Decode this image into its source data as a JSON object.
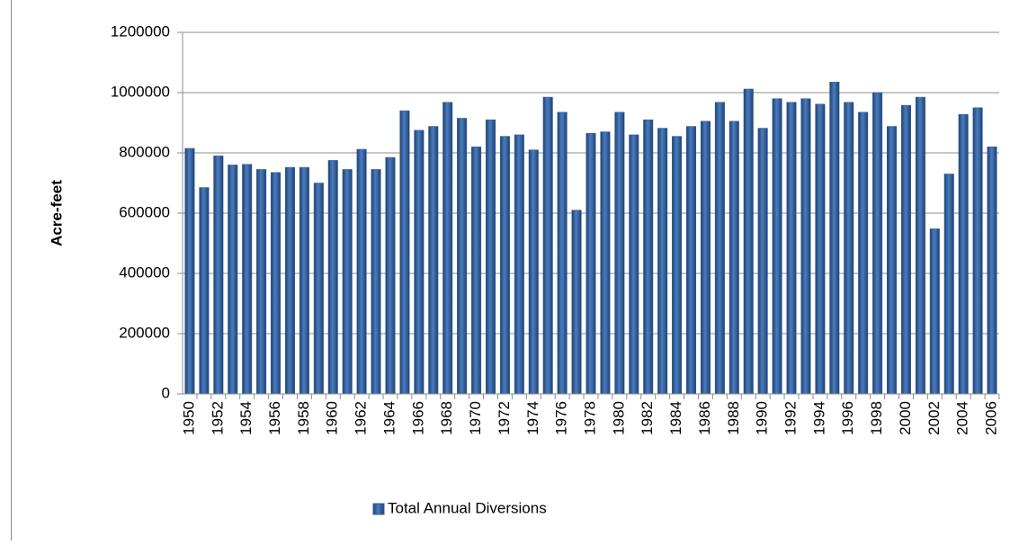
{
  "chart_data": {
    "type": "bar",
    "y_label": "Acre-feet",
    "categories": [
      "1950",
      null,
      "1952",
      null,
      "1954",
      null,
      "1956",
      null,
      "1958",
      null,
      "1960",
      null,
      "1962",
      null,
      "1964",
      null,
      "1966",
      null,
      "1968",
      null,
      "1970",
      null,
      "1972",
      null,
      "1974",
      null,
      "1976",
      null,
      "1978",
      null,
      "1980",
      null,
      "1982",
      null,
      "1984",
      null,
      "1986",
      null,
      "1988",
      null,
      "1990",
      null,
      "1992",
      null,
      "1994",
      null,
      "1996",
      null,
      "1998",
      null,
      "2000",
      null,
      "2002",
      null,
      "2004",
      null,
      "2006"
    ],
    "series": [
      {
        "name": "Total Annual Diversions",
        "color": "#2f5d99",
        "values": [
          815000,
          685000,
          790000,
          760000,
          762000,
          745000,
          735000,
          752000,
          752000,
          700000,
          775000,
          745000,
          812000,
          745000,
          785000,
          940000,
          875000,
          888000,
          968000,
          915000,
          820000,
          910000,
          855000,
          860000,
          810000,
          985000,
          935000,
          610000,
          865000,
          870000,
          935000,
          860000,
          910000,
          882000,
          855000,
          888000,
          905000,
          968000,
          905000,
          1012000,
          882000,
          980000,
          968000,
          980000,
          962000,
          1035000,
          968000,
          935000,
          1000000,
          888000,
          958000,
          985000,
          548000,
          730000,
          928000,
          950000,
          820000
        ]
      }
    ],
    "ylim": [
      0,
      1200000
    ],
    "yticks": [
      0,
      200000,
      400000,
      600000,
      800000,
      1000000,
      1200000
    ],
    "grid": true
  }
}
